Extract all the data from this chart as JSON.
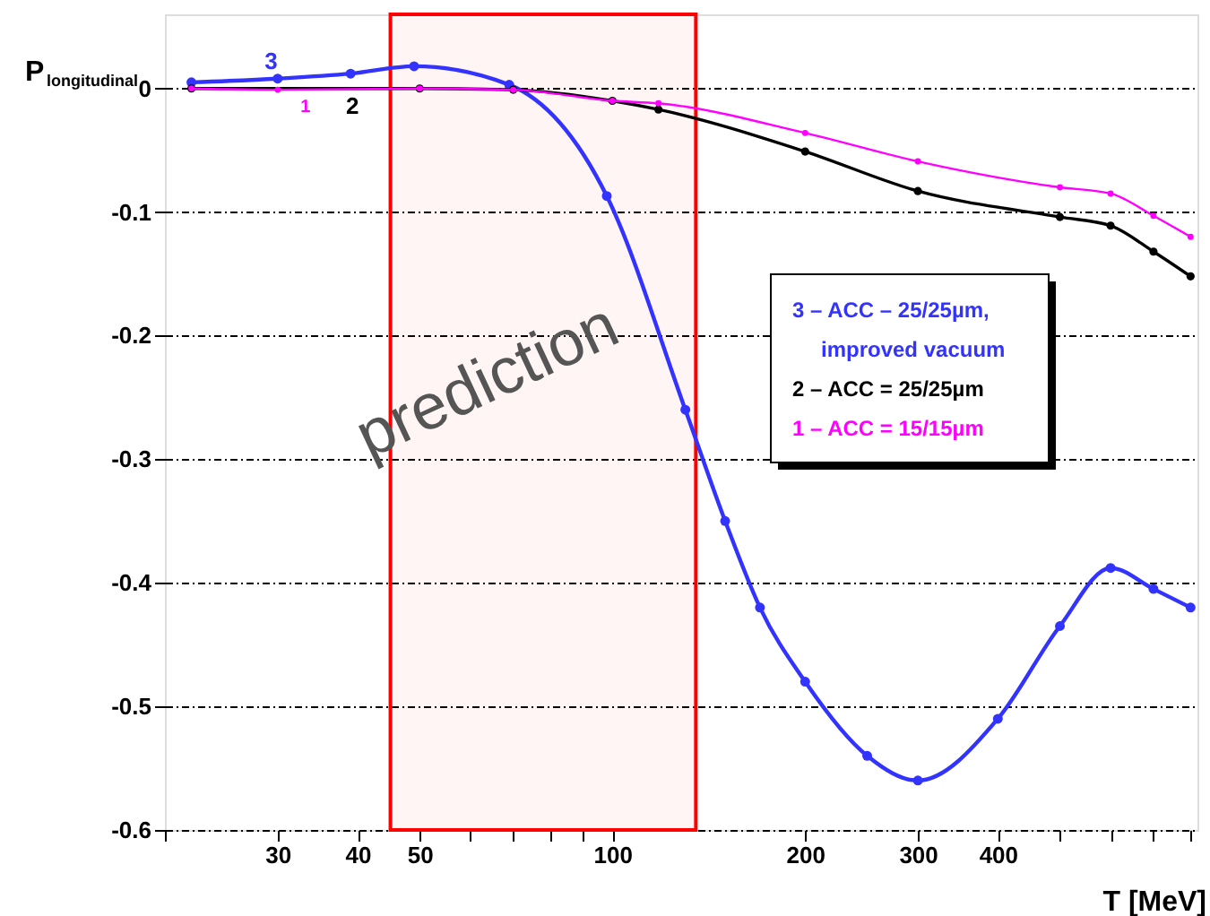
{
  "chart_data": {
    "type": "line",
    "xlabel": "T [MeV]",
    "ylabel": "P$_{longitudinal}$",
    "log": "x",
    "xlim": [
      20,
      820
    ],
    "ylim": [
      -0.6,
      0.06
    ],
    "xticks": [
      {
        "value": 20,
        "label": null
      },
      30,
      40,
      50,
      {
        "value": 60,
        "label": null
      },
      {
        "value": 70,
        "label": null
      },
      {
        "value": 80,
        "label": null
      },
      {
        "value": 90,
        "label": null
      },
      100,
      200,
      300,
      400,
      {
        "value": 500,
        "label": null
      },
      {
        "value": 600,
        "label": null
      },
      {
        "value": 700,
        "label": null
      },
      {
        "value": 800,
        "label": null
      }
    ],
    "yticks": [
      0,
      -0.1,
      -0.2,
      -0.3,
      -0.4,
      -0.5,
      -0.6
    ],
    "grid": "y",
    "legend": "right",
    "marker": "circle",
    "line_style": "solid",
    "series": [
      {
        "name": "3 – ACC – 25/25µm, improved vacuum",
        "color": "#3333ff",
        "x": [
          22,
          30,
          39,
          49,
          69,
          98,
          130,
          150,
          170,
          200,
          250,
          300,
          400,
          500,
          600,
          700,
          800
        ],
        "values": [
          0.005,
          0.008,
          0.012,
          0.018,
          0.003,
          -0.087,
          -0.26,
          -0.35,
          -0.42,
          -0.48,
          -0.54,
          -0.56,
          -0.51,
          -0.435,
          -0.388,
          -0.405,
          -0.42
        ]
      },
      {
        "name": "2 – ACC = 25/25µm",
        "color": "#000000",
        "x": [
          22,
          50,
          70,
          100,
          118,
          200,
          300,
          500,
          600,
          700,
          800
        ],
        "values": [
          0.0,
          0.0,
          -0.001,
          -0.01,
          -0.017,
          -0.051,
          -0.083,
          -0.104,
          -0.111,
          -0.132,
          -0.152
        ]
      },
      {
        "name": "1 – ACC = 15/15µm",
        "color": "#ff00ff",
        "x": [
          22,
          30,
          50,
          70,
          100,
          118,
          200,
          300,
          500,
          600,
          700,
          800
        ],
        "values": [
          0.0,
          -0.001,
          0.0,
          -0.001,
          -0.01,
          -0.012,
          -0.036,
          -0.059,
          -0.08,
          -0.085,
          -0.103,
          -0.12
        ]
      }
    ],
    "annotations": [
      "3",
      "2",
      "1"
    ],
    "bands": [
      {
        "axis": "x",
        "from": 45,
        "to": 135,
        "label": "prediction",
        "color": "#ff0000"
      }
    ]
  }
}
